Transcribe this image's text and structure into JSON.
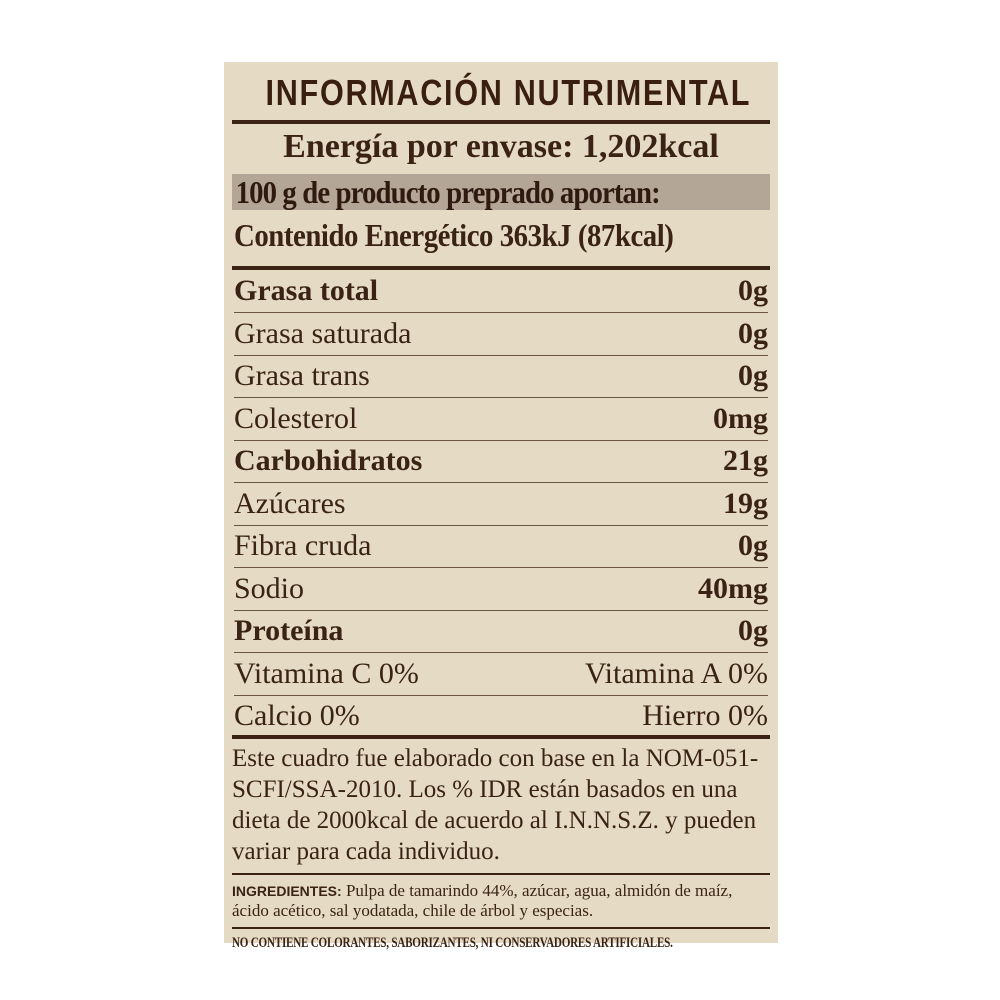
{
  "title": "INFORMACIÓN NUTRIMENTAL",
  "energy_per_package": "Energía por envase: 1,202kcal",
  "serving_header": "100 g de producto preprado aportan:",
  "energy_content": "Contenido Energético 363kJ (87kcal)",
  "nutrients": [
    {
      "label": "Grasa total",
      "value": "0g",
      "bold": true
    },
    {
      "label": "Grasa saturada",
      "value": "0g",
      "bold": false
    },
    {
      "label": "Grasa trans",
      "value": "0g",
      "bold": false
    },
    {
      "label": "Colesterol",
      "value": "0mg",
      "bold": false
    },
    {
      "label": "Carbohidratos",
      "value": "21g",
      "bold": true
    },
    {
      "label": "Azúcares",
      "value": "19g",
      "bold": false
    },
    {
      "label": "Fibra cruda",
      "value": "0g",
      "bold": false
    },
    {
      "label": "Sodio",
      "value": "40mg",
      "bold": false
    },
    {
      "label": "Proteína",
      "value": "0g",
      "bold": true
    }
  ],
  "vitamins": [
    {
      "left": "Vitamina C 0%",
      "right": "Vitamina A 0%"
    },
    {
      "left": "Calcio 0%",
      "right": "Hierro 0%"
    }
  ],
  "note": "Este cuadro fue elaborado con base en la NOM-051-SCFI/SSA-2010. Los % IDR están basados en una dieta de 2000kcal de acuerdo al I.N.N.S.Z. y pueden variar para cada individuo.",
  "ingredients_label": "INGREDIENTES:",
  "ingredients": "Pulpa de tamarindo 44%, azúcar, agua, almidón de maíz, ácido acético, sal yodatada, chile de árbol y especias.",
  "footer": "NO CONTIENE COLORANTES, SABORIZANTES, NI CONSERVADORES ARTIFICIALES.",
  "colors": {
    "background": "#e5dbc4",
    "text": "#3a2314",
    "band": "#b4a696"
  }
}
